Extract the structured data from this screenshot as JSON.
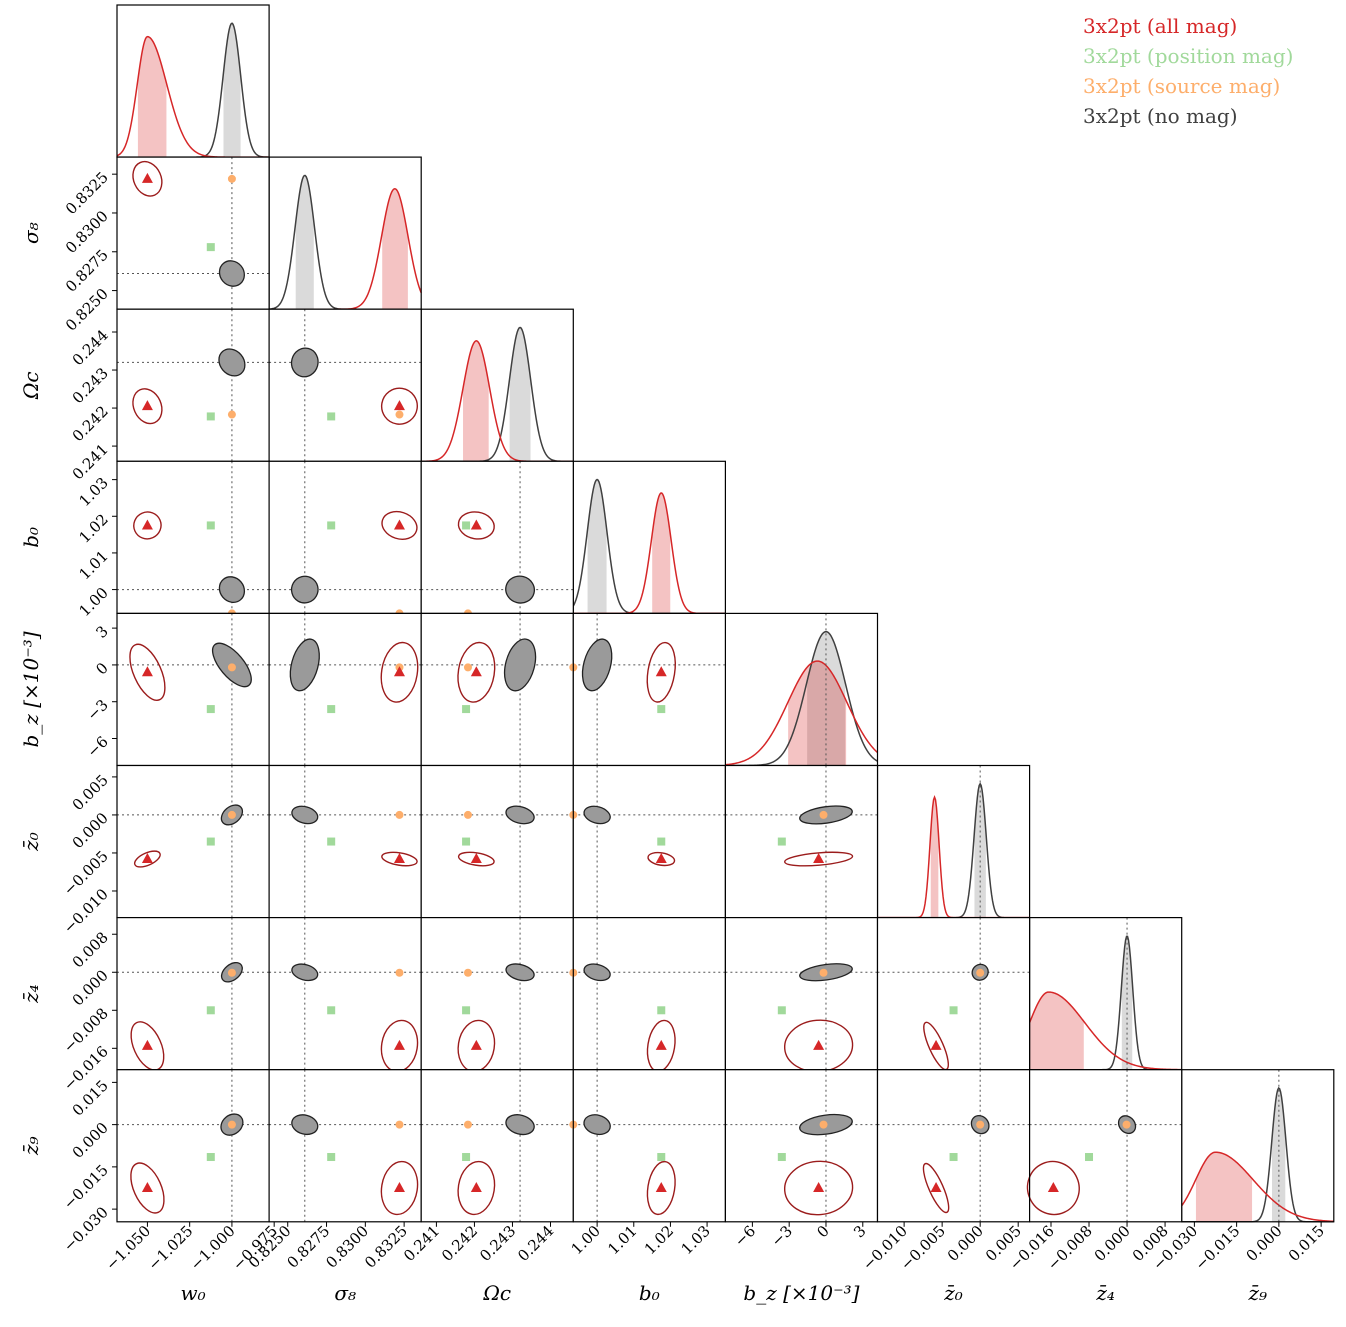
{
  "chart_data": {
    "type": "corner",
    "legend": [
      {
        "name": "3x2pt (all mag)",
        "color": "#d62728"
      },
      {
        "name": "3x2pt (position mag)",
        "color": "#a1d99b"
      },
      {
        "name": "3x2pt (source mag)",
        "color": "#fdae6b"
      },
      {
        "name": "3x2pt (no mag)",
        "color": "#404040"
      }
    ],
    "params": [
      {
        "key": "w0",
        "label": "w₀",
        "fid": -1.0,
        "range": [
          -1.068,
          -0.978
        ],
        "ticks": [
          -1.05,
          -1.025,
          -1.0,
          -0.975
        ],
        "ticklabels": [
          "−1.050",
          "−1.025",
          "−1.000",
          "−0.975"
        ]
      },
      {
        "key": "s8",
        "label": "σ₈",
        "fid": 0.8261,
        "range": [
          0.8238,
          0.8336
        ],
        "ticks": [
          0.825,
          0.8275,
          0.83,
          0.8325
        ],
        "ticklabels": [
          "0.8250",
          "0.8275",
          "0.8300",
          "0.8325"
        ]
      },
      {
        "key": "Oc",
        "label": "Ωc",
        "fid": 0.2432,
        "range": [
          0.2406,
          0.2446
        ],
        "ticks": [
          0.241,
          0.242,
          0.243,
          0.244
        ],
        "ticklabels": [
          "0.241",
          "0.242",
          "0.243",
          "0.244"
        ]
      },
      {
        "key": "b0",
        "label": "b₀",
        "fid": 1.0,
        "range": [
          0.9935,
          1.035
        ],
        "ticks": [
          1.0,
          1.01,
          1.02,
          1.03
        ],
        "ticklabels": [
          "1.00",
          "1.01",
          "1.02",
          "1.03"
        ]
      },
      {
        "key": "bz",
        "label": "b_z [×10⁻³]",
        "fid": 0.0,
        "range": [
          -8.2,
          4.2
        ],
        "ticks": [
          -6,
          -3,
          0,
          3
        ],
        "ticklabels": [
          "−6",
          "−3",
          "0",
          "3"
        ]
      },
      {
        "key": "z0",
        "label": "z̄₀",
        "fid": 0.0,
        "range": [
          -0.0135,
          0.0065
        ],
        "ticks": [
          -0.01,
          -0.005,
          0.0,
          0.005
        ],
        "ticklabels": [
          "−0.010",
          "−0.005",
          "0.000",
          "0.005"
        ]
      },
      {
        "key": "z4",
        "label": "z̄₄",
        "fid": 0.0,
        "range": [
          -0.0205,
          0.0115
        ],
        "ticks": [
          -0.016,
          -0.008,
          0.0,
          0.008
        ],
        "ticklabels": [
          "−0.016",
          "−0.008",
          "0.000",
          "0.008"
        ]
      },
      {
        "key": "z9",
        "label": "z̄₉",
        "fid": 0.0,
        "range": [
          -0.0345,
          0.0195
        ],
        "ticks": [
          -0.03,
          -0.015,
          0.0,
          0.015
        ],
        "ticklabels": [
          "−0.030",
          "−0.015",
          "0.000",
          "0.015"
        ]
      }
    ],
    "points": {
      "all_mag": {
        "w0": -1.05,
        "s8": 0.8322,
        "Oc": 0.24205,
        "b0": 1.0175,
        "bz": -0.6,
        "z0": -0.0058,
        "z4": -0.0155,
        "z9": -0.0225
      },
      "position_mag": {
        "w0": -1.0125,
        "s8": 0.8278,
        "Oc": 0.24178,
        "b0": 1.0175,
        "bz": -3.6,
        "z0": -0.0035,
        "z4": -0.008,
        "z9": -0.0115
      },
      "source_mag": {
        "w0": -1.0,
        "s8": 0.8322,
        "Oc": 0.24183,
        "b0": 0.9935,
        "bz": -0.2,
        "z0": 0.0,
        "z4": -0.0001,
        "z9": 0.0
      }
    },
    "no_mag": {
      "mean": {
        "w0": -1.0,
        "s8": 0.8261,
        "Oc": 0.2432,
        "b0": 1.0,
        "bz": 0.0,
        "z0": 0.0,
        "z4": 0.0,
        "z9": 0.0
      },
      "sd": {
        "w0": 0.0052,
        "s8": 0.00063,
        "Oc": 0.00028,
        "b0": 0.0027,
        "bz": 1.6,
        "z0": 0.0008,
        "z4": 0.0012,
        "z9": 0.0025
      }
    },
    "all_mag": {
      "mean": {
        "w0": -1.05,
        "s8": 0.8319,
        "Oc": 0.24205,
        "b0": 1.0175,
        "bz": -0.7,
        "z0": -0.006,
        "z4": -0.0165,
        "z9": -0.0225
      },
      "sd": {
        "w0": 0.006,
        "s8": 0.00085,
        "Oc": 0.00035,
        "b0": 0.0027,
        "bz": 2.4,
        "z0": 0.0006,
        "z4": 0.004,
        "z9": 0.007
      },
      "skew": {
        "w0": 0.9,
        "s8": 0,
        "Oc": 0,
        "b0": 0,
        "bz": 0,
        "z0": 0,
        "z4": 0.9,
        "z9": 0.9
      }
    }
  }
}
